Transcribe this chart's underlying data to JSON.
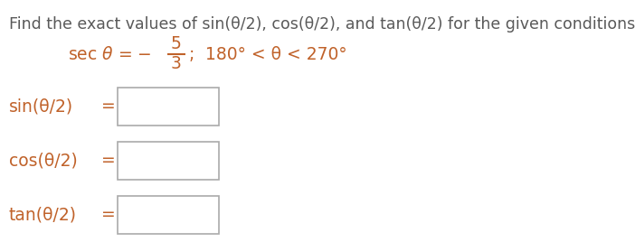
{
  "title": "Find the exact values of sin(θ/2), cos(θ/2), and tan(θ/2) for the given conditions.",
  "title_color": "#595959",
  "condition_color": "#c0622a",
  "background_color": "#ffffff",
  "title_fontsize": 12.5,
  "condition_fontsize": 13.5,
  "label_fontsize": 13.5,
  "labels": [
    "sin(θ/2)",
    "cos(θ/2)",
    "tan(θ/2)"
  ],
  "box_color": "#aaaaaa"
}
